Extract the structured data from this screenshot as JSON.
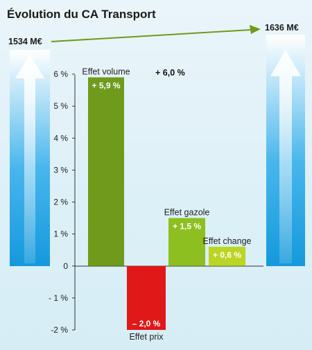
{
  "chart_data": {
    "type": "bar",
    "title": "Évolution du CA Transport",
    "start_label": "1534 M€",
    "end_label": "1636 M€",
    "total_label": "+ 6,0 %",
    "categories": [
      "Effet volume",
      "Effet prix",
      "Effet gazole",
      "Effet change"
    ],
    "values": [
      5.9,
      -2.0,
      1.5,
      0.6
    ],
    "value_labels": [
      "+ 5,9 %",
      "– 2,0 %",
      "+ 1,5 %",
      "+ 0,6 %"
    ],
    "colors": [
      "#6f9a1c",
      "#e01818",
      "#8cbf1f",
      "#bcd423"
    ],
    "ylim": [
      -2,
      6
    ],
    "yticks": [
      6,
      5,
      4,
      3,
      2,
      1,
      0,
      -1,
      -2
    ],
    "ytick_labels": [
      "6 %",
      "5 %",
      "4 %",
      "3 %",
      "2 %",
      "1 %",
      "0",
      "- 1 %",
      "-2 %"
    ],
    "grid": false
  }
}
